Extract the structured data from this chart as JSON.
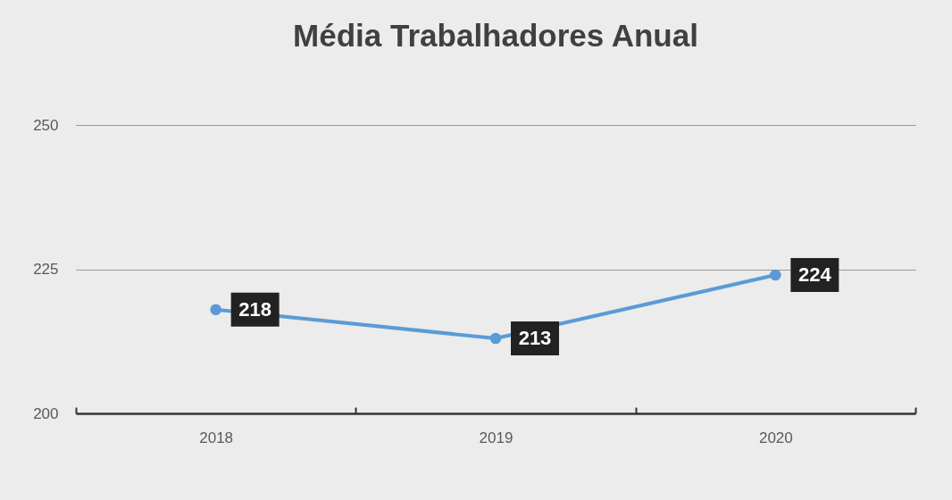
{
  "chart_data": {
    "type": "line",
    "title": "Média Trabalhadores Anual",
    "categories": [
      "2018",
      "2019",
      "2020"
    ],
    "series": [
      {
        "color": "#5b9bd5",
        "values": [
          218,
          213,
          224
        ]
      }
    ],
    "ylim": [
      200,
      250
    ],
    "yticks": [
      200,
      225,
      250
    ],
    "grid": "y",
    "marker": "circle",
    "line_style": "solid",
    "data_labels": true
  }
}
